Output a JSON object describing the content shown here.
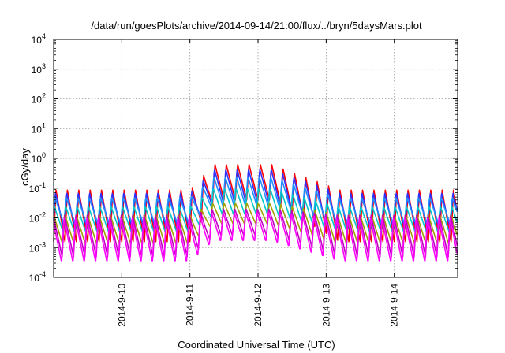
{
  "chart_data": {
    "type": "line",
    "title": "/data/run/goesPlots/archive/2014-09-14/21:00/flux/../bryn/5daysMars.plot",
    "xlabel": "Coordinated Universal Time (UTC)",
    "ylabel": "cGy/day",
    "yscale": "log",
    "ylim_exponents": [
      -4,
      4
    ],
    "y_tick_base": "10",
    "y_ticks": [
      {
        "exp": -4,
        "label": "-4"
      },
      {
        "exp": -3,
        "label": "-3"
      },
      {
        "exp": -2,
        "label": "-2"
      },
      {
        "exp": -1,
        "label": "-1"
      },
      {
        "exp": 0,
        "label": "0"
      },
      {
        "exp": 1,
        "label": "1"
      },
      {
        "exp": 2,
        "label": "2"
      },
      {
        "exp": 3,
        "label": "3"
      },
      {
        "exp": 4,
        "label": "4"
      }
    ],
    "xlim": [
      "2014-09-09 00:00",
      "2014-09-15 00:00"
    ],
    "xlim_days": [
      9.0,
      14.93
    ],
    "x_ticks": [
      {
        "day": 10,
        "label": "2014-9-10"
      },
      {
        "day": 11,
        "label": "2014-9-11"
      },
      {
        "day": 12,
        "label": "2014-9-12"
      },
      {
        "day": 13,
        "label": "2014-9-13"
      },
      {
        "day": 14,
        "label": "2014-9-14"
      }
    ],
    "grid": true,
    "oscillation_period_hours": 4,
    "series": [
      {
        "color": "#ff0000",
        "low_exp": -2.8,
        "high_exp": -1.05,
        "storm_high_exp": -0.2,
        "storm_low_exp": -1.4,
        "phase": 0.0
      },
      {
        "color": "#3030ff",
        "low_exp": -2.4,
        "high_exp": -1.15,
        "storm_high_exp": -0.35,
        "storm_low_exp": -1.5,
        "phase": 0.05
      },
      {
        "color": "#1e90ff",
        "low_exp": -2.2,
        "high_exp": -1.3,
        "storm_high_exp": -0.6,
        "storm_low_exp": -1.6,
        "phase": 0.1
      },
      {
        "color": "#00c8c8",
        "low_exp": -2.5,
        "high_exp": -1.6,
        "storm_high_exp": -1.0,
        "storm_low_exp": -1.9,
        "phase": 0.15
      },
      {
        "color": "#a0a000",
        "low_exp": -2.9,
        "high_exp": -1.9,
        "storm_high_exp": -1.5,
        "storm_low_exp": -2.2,
        "phase": 0.2
      },
      {
        "color": "#c000c0",
        "low_exp": -3.3,
        "high_exp": -1.9,
        "storm_high_exp": -1.7,
        "storm_low_exp": -2.6,
        "phase": 0.25
      },
      {
        "color": "#ff00ff",
        "low_exp": -3.5,
        "high_exp": -2.0,
        "storm_high_exp": -1.8,
        "storm_low_exp": -2.8,
        "phase": 0.3
      }
    ]
  }
}
